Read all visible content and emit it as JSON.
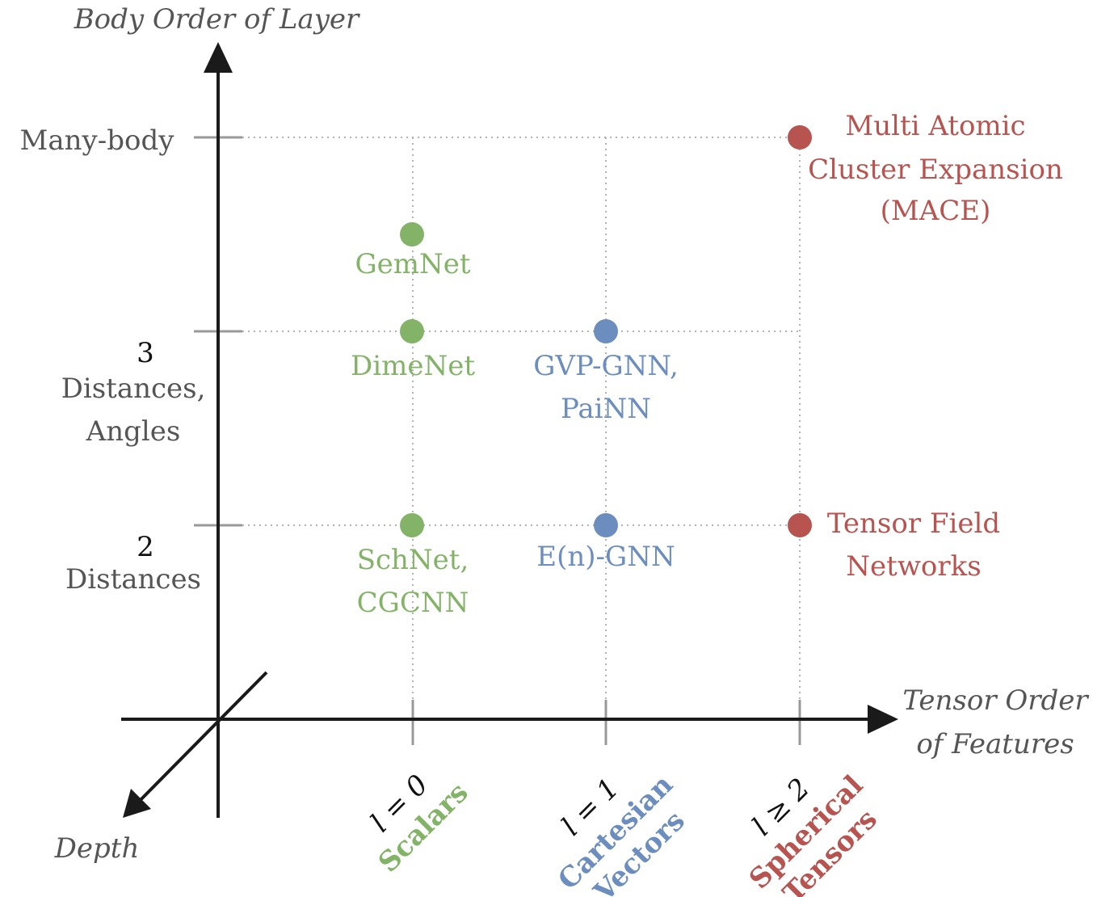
{
  "axes": {
    "y_title": "Body Order of Layer",
    "x_title_line1": "Tensor Order",
    "x_title_line2": "of Features",
    "depth_title": "Depth"
  },
  "y_ticks": {
    "many_body": "Many-body",
    "three_num": "3",
    "three_line1": "Distances,",
    "three_line2": "Angles",
    "two_num": "2",
    "two_line1": "Distances"
  },
  "x_ticks": {
    "l0_math": "l = 0",
    "l0_label": "Scalars",
    "l1_math": "l = 1",
    "l1_label_line1": "Cartesian",
    "l1_label_line2": "Vectors",
    "l2_math": "l ≥ 2",
    "l2_label_line1": "Spherical",
    "l2_label_line2": "Tensors"
  },
  "models": {
    "gemnet": "GemNet",
    "dimenet": "DimeNet",
    "gvp_line1": "GVP-GNN,",
    "gvp_line2": "PaiNN",
    "schnet_line1": "SchNet,",
    "schnet_line2": "CGCNN",
    "egnn": "E(n)-GNN",
    "tfn_line1": "Tensor Field",
    "tfn_line2": "Networks",
    "mace_line1": "Multi Atomic",
    "mace_line2": "Cluster Expansion",
    "mace_line3": "(MACE)"
  },
  "colors": {
    "scalars": "#82b366",
    "vectors": "#6c8ebf",
    "tensors": "#b85450",
    "axis": "#1a1a1a",
    "label": "#555555",
    "grid": "#b3b3b3"
  }
}
